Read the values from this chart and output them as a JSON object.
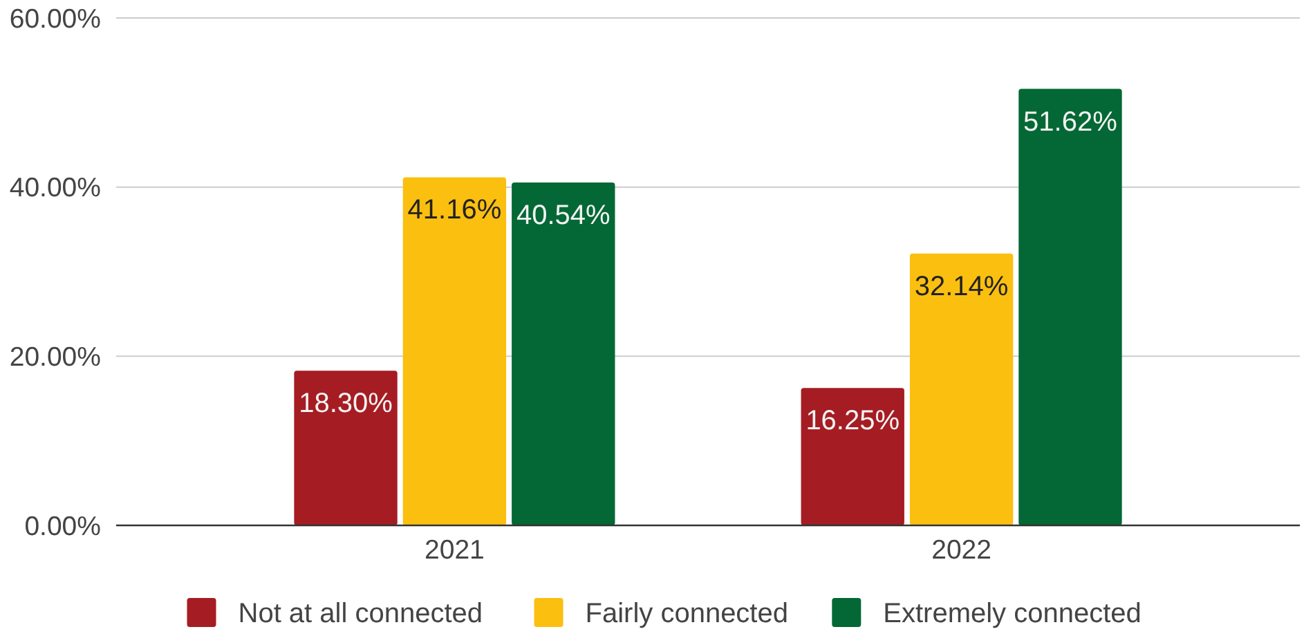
{
  "chart_data": {
    "type": "bar",
    "categories": [
      "2021",
      "2022"
    ],
    "series": [
      {
        "name": "Not at all connected",
        "color": "#a61c23",
        "values": [
          18.3,
          16.25
        ],
        "value_labels": [
          "18.30%",
          "16.25%"
        ]
      },
      {
        "name": "Fairly connected",
        "color": "#fbbf10",
        "values": [
          41.16,
          32.14
        ],
        "value_labels": [
          "41.16%",
          "32.14%"
        ]
      },
      {
        "name": "Extremely connected",
        "color": "#036835",
        "values": [
          40.54,
          51.62
        ],
        "value_labels": [
          "40.54%",
          "51.62%"
        ]
      }
    ],
    "ylim": [
      0,
      60
    ],
    "yticks": [
      {
        "value": 0,
        "label": "0.00%"
      },
      {
        "value": 20,
        "label": "20.00%"
      },
      {
        "value": 40,
        "label": "40.00%"
      },
      {
        "value": 60,
        "label": "60.00%"
      }
    ],
    "grid": "y",
    "legend": "bottom"
  }
}
